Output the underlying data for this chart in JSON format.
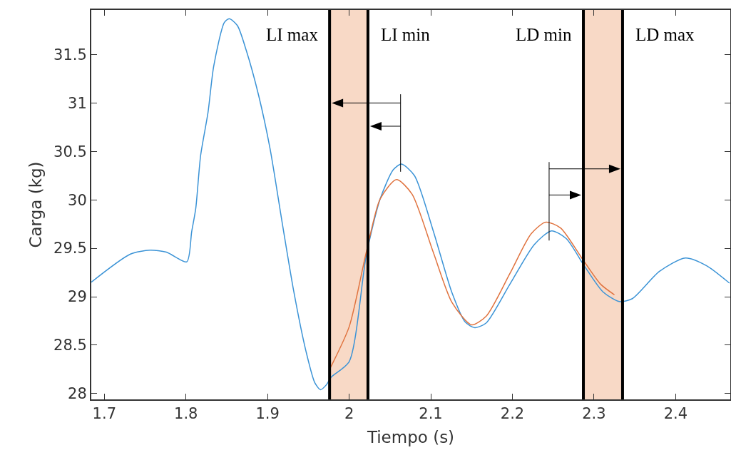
{
  "chart_data": {
    "type": "line",
    "xlabel": "Tiempo (s)",
    "ylabel": "Carga (kg)",
    "xlim": [
      1.684,
      2.467
    ],
    "ylim": [
      27.94,
      31.96
    ],
    "xticks": [
      1.7,
      1.8,
      1.9,
      2,
      2.1,
      2.2,
      2.3,
      2.4
    ],
    "yticks": [
      28,
      28.5,
      29,
      29.5,
      30,
      30.5,
      31,
      31.5
    ],
    "grid": false,
    "marker": "none",
    "line_style": "solid",
    "series": [
      {
        "color": "#3b93d6",
        "x": [
          1.684,
          1.732,
          1.756,
          1.776,
          1.801,
          1.807,
          1.812,
          1.818,
          1.827,
          1.834,
          1.847,
          1.853,
          1.863,
          1.874,
          1.889,
          1.903,
          1.918,
          1.932,
          1.947,
          1.958,
          1.965,
          1.972,
          1.978,
          2.0,
          2.021,
          2.038,
          2.054,
          2.064,
          2.08,
          2.103,
          2.126,
          2.142,
          2.154,
          2.168,
          2.197,
          2.227,
          2.248,
          2.266,
          2.288,
          2.311,
          2.331,
          2.347,
          2.38,
          2.412,
          2.438,
          2.466
        ],
        "values": [
          29.15,
          29.44,
          29.48,
          29.46,
          29.36,
          29.67,
          29.91,
          30.46,
          30.9,
          31.38,
          31.83,
          31.87,
          31.8,
          31.54,
          31.08,
          30.53,
          29.76,
          29.06,
          28.44,
          28.11,
          28.04,
          28.09,
          28.17,
          28.33,
          29.43,
          30.01,
          30.31,
          30.37,
          30.25,
          29.68,
          29.04,
          28.74,
          28.68,
          28.73,
          29.13,
          29.54,
          29.68,
          29.6,
          29.32,
          29.05,
          28.95,
          28.98,
          29.26,
          29.4,
          29.32,
          29.14
        ]
      },
      {
        "color": "#e0733f",
        "x": [
          1.976,
          2.0,
          2.021,
          2.038,
          2.058,
          2.077,
          2.103,
          2.126,
          2.15,
          2.168,
          2.197,
          2.223,
          2.241,
          2.259,
          2.285,
          2.308,
          2.325
        ],
        "values": [
          28.25,
          28.69,
          29.46,
          30.01,
          30.21,
          30.06,
          29.46,
          28.94,
          28.71,
          28.8,
          29.24,
          29.65,
          29.77,
          29.71,
          29.4,
          29.13,
          29.02
        ]
      }
    ],
    "bands": [
      {
        "axis": "x",
        "from": 1.976,
        "to": 2.023,
        "color": "#f8d9c6"
      },
      {
        "axis": "x",
        "from": 2.287,
        "to": 2.335,
        "color": "#f8d9c6"
      }
    ],
    "ref_lines": [
      {
        "axis": "x",
        "value": 1.976,
        "color": "#000000",
        "line_style": "solid"
      },
      {
        "axis": "x",
        "value": 2.023,
        "color": "#000000",
        "line_style": "solid"
      },
      {
        "axis": "x",
        "value": 2.287,
        "color": "#000000",
        "line_style": "solid"
      },
      {
        "axis": "x",
        "value": 2.335,
        "color": "#000000",
        "line_style": "solid"
      }
    ],
    "annotations": [
      "LI max",
      "LI min",
      "LD min",
      "LD max"
    ]
  }
}
